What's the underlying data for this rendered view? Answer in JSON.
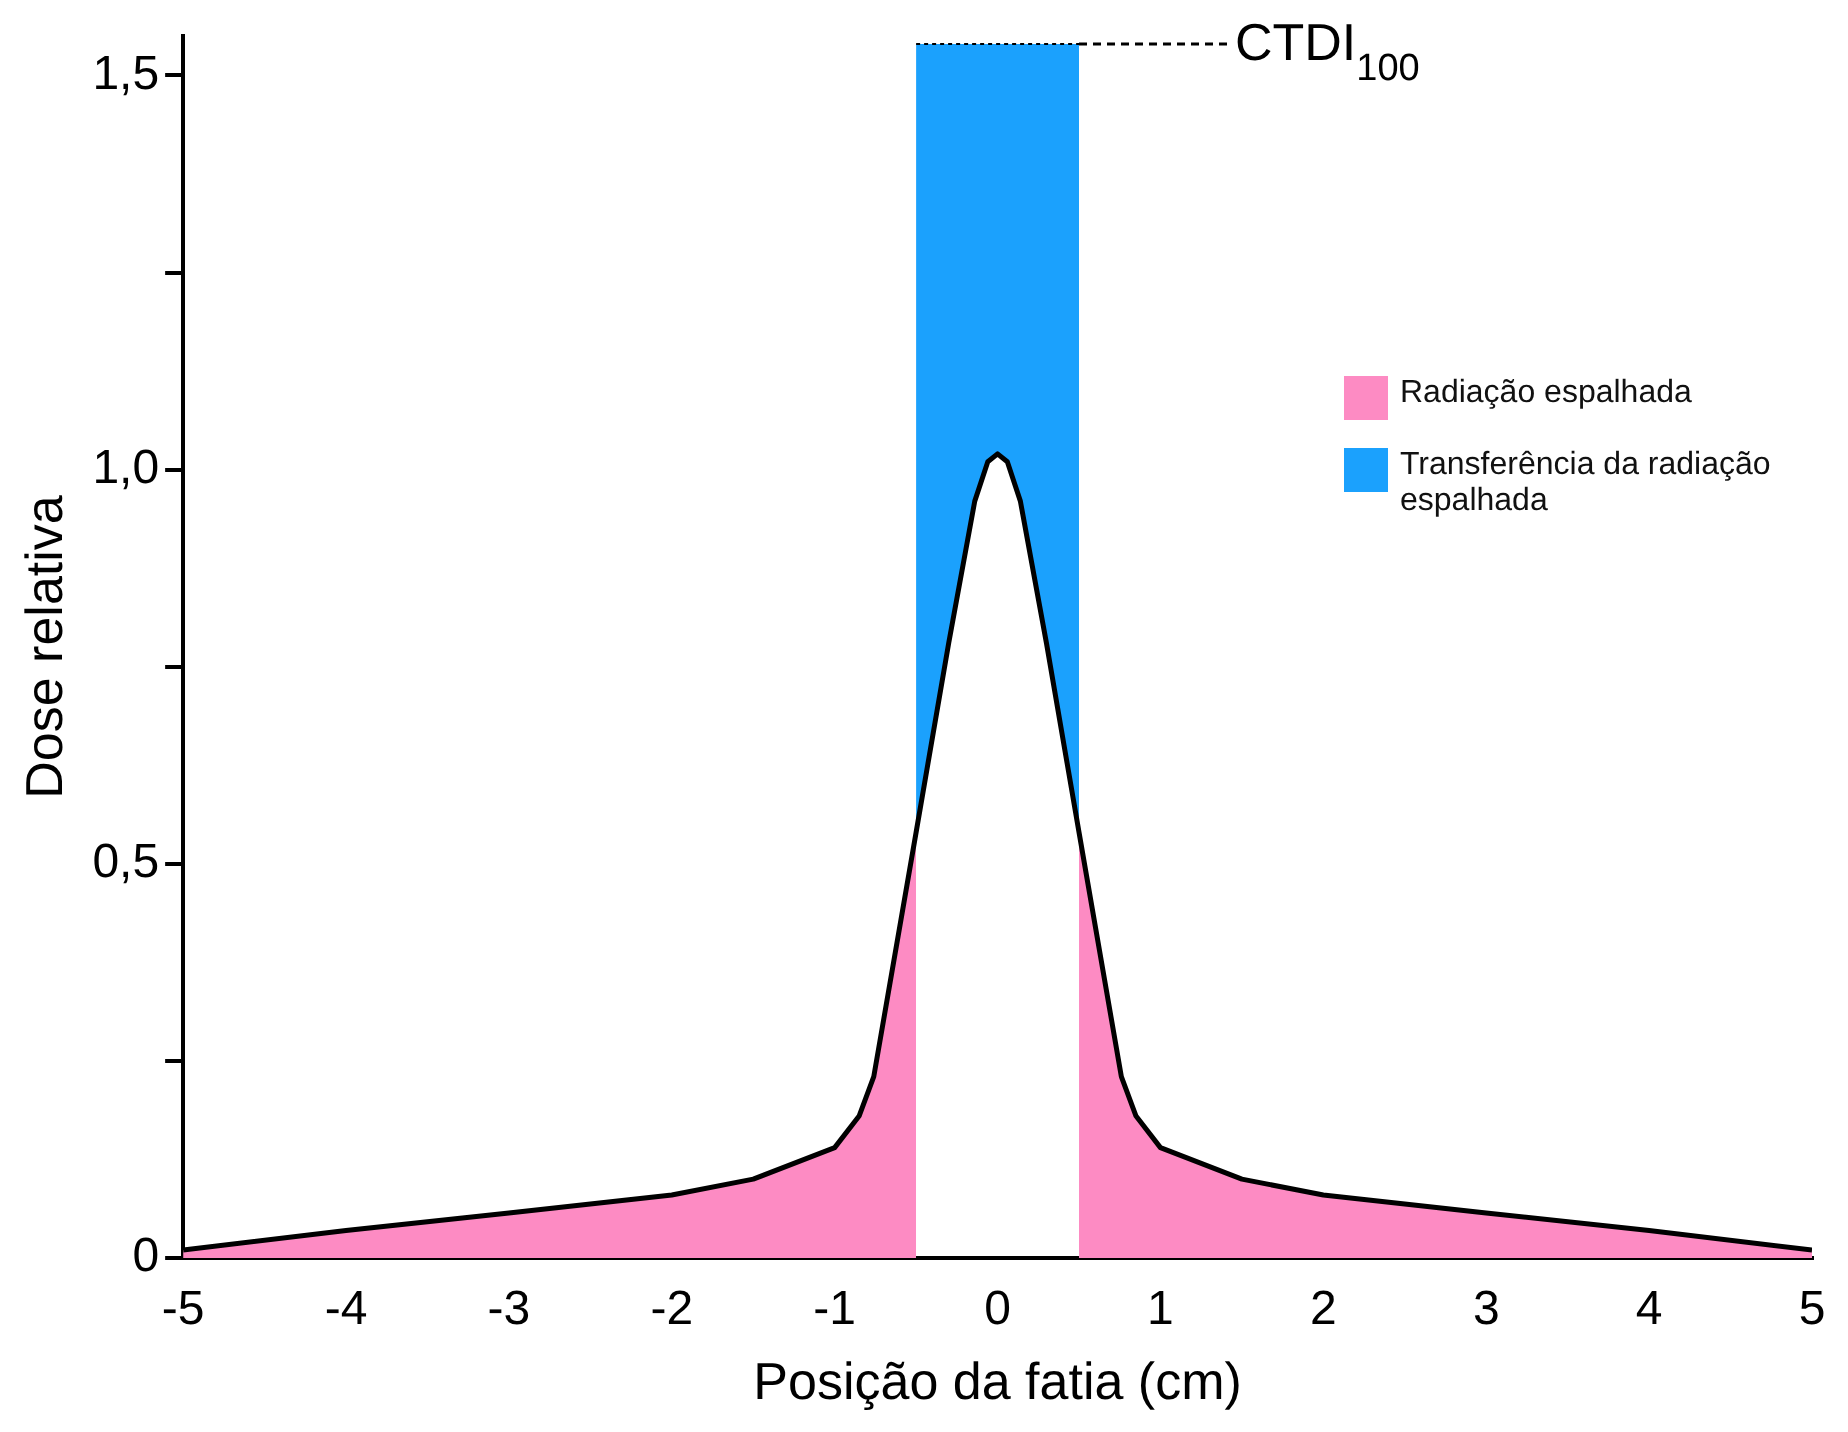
{
  "chart_data": {
    "type": "line",
    "xlabel": "Posição da fatia (cm)",
    "ylabel": "Dose relativa",
    "xlim": [
      -5,
      5
    ],
    "xticks": [
      -5,
      -4,
      -3,
      -2,
      -1,
      0,
      1,
      2,
      3,
      4,
      5
    ],
    "ylim": [
      0,
      1.55
    ],
    "yticks": [
      {
        "value": 0,
        "label": "0"
      },
      {
        "value": 0.25,
        "label": null
      },
      {
        "value": 0.5,
        "label": "0,5"
      },
      {
        "value": 0.75,
        "label": null
      },
      {
        "value": 1,
        "label": "1,0"
      },
      {
        "value": 1.25,
        "label": null
      },
      {
        "value": 1.5,
        "label": "1,5"
      }
    ],
    "grid": false,
    "legend": "right",
    "marker": "none",
    "series": [
      {
        "name": "Radiação espalhada",
        "type": "area",
        "color": "#fd8bc3",
        "x": [
          -5,
          -4,
          -3,
          -2,
          -1.5,
          -1,
          -0.85,
          -0.76,
          -0.5,
          0,
          0.5,
          0.76,
          0.85,
          1,
          1.5,
          2,
          3,
          4,
          5
        ],
        "values": [
          0.01,
          0.035,
          0.057,
          0.08,
          0.1,
          0.14,
          0.18,
          0.23,
          0.54,
          null,
          0.54,
          0.23,
          0.18,
          0.14,
          0.1,
          0.08,
          0.057,
          0.035,
          0.01
        ]
      },
      {
        "name": "Transferência da radiação espalhada",
        "type": "area",
        "color": "#1ba1fd",
        "x": [
          -0.5,
          -0.3,
          -0.14,
          -0.06,
          0,
          0.06,
          0.14,
          0.3,
          0.5
        ],
        "values": [
          1.54,
          1.54,
          1.54,
          1.54,
          1.54,
          1.54,
          1.54,
          1.54,
          1.54
        ]
      },
      {
        "type": "line",
        "color": "#000000",
        "line_style": "solid",
        "x": [
          -5,
          -4,
          -3,
          -2,
          -1.5,
          -1,
          -0.85,
          -0.76,
          -0.5,
          -0.3,
          -0.14,
          -0.06,
          0,
          0.06,
          0.14,
          0.3,
          0.5,
          0.76,
          0.85,
          1,
          1.5,
          2,
          3,
          4,
          5
        ],
        "values": [
          0.01,
          0.035,
          0.057,
          0.08,
          0.1,
          0.14,
          0.18,
          0.23,
          0.54,
          0.78,
          0.96,
          1.01,
          1.02,
          1.01,
          0.96,
          0.78,
          0.54,
          0.23,
          0.18,
          0.14,
          0.1,
          0.08,
          0.057,
          0.035,
          0.01
        ]
      }
    ],
    "annotations": [
      "CTDI$_{100}$"
    ]
  }
}
